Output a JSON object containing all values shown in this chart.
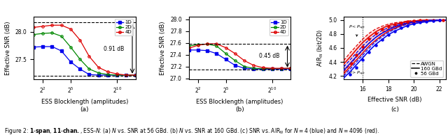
{
  "fig_width": 6.4,
  "fig_height": 1.97,
  "dpi": 100,
  "subplot_a": {
    "xlabel": "ESS Blocklength (amplitudes)",
    "ylabel": "Effective SNR (dB)",
    "dashed_upper": 28.18,
    "dashed_lower": 27.2,
    "annotation": "0.91 dB",
    "x_log": [
      2,
      4,
      8,
      16,
      32,
      64,
      128,
      256,
      512,
      1024,
      2048,
      4096
    ],
    "y_1d": [
      27.72,
      27.73,
      27.73,
      27.65,
      27.45,
      27.32,
      27.22,
      27.21,
      27.21,
      27.21,
      27.21,
      27.21
    ],
    "y_2d": [
      27.95,
      27.97,
      27.98,
      27.92,
      27.72,
      27.5,
      27.32,
      27.25,
      27.22,
      27.21,
      27.21,
      27.21
    ],
    "y_4d": [
      28.08,
      28.1,
      28.12,
      28.12,
      28.05,
      27.85,
      27.55,
      27.35,
      27.27,
      27.23,
      27.21,
      27.21
    ],
    "ylim": [
      27.13,
      28.28
    ],
    "yticks": [
      27.5,
      28.0
    ],
    "xticks_pos": [
      4,
      32,
      1024
    ],
    "xticks_labels": [
      "$2^2$",
      "$2^5$",
      "$2^{10}$"
    ],
    "xlim": [
      2,
      4096
    ]
  },
  "subplot_b": {
    "xlabel": "ESS Blocklength (amplitudes)",
    "ylabel": "Effective SNR (dB)",
    "dashed_upper": 27.59,
    "dashed_lower": 27.15,
    "annotation": "0.45 dB",
    "x_log": [
      2,
      4,
      8,
      16,
      32,
      64,
      128,
      256,
      512,
      1024,
      2048,
      4096
    ],
    "y_1d": [
      27.48,
      27.48,
      27.47,
      27.42,
      27.32,
      27.22,
      27.17,
      27.16,
      27.155,
      27.155,
      27.155,
      27.16
    ],
    "y_2d": [
      27.55,
      27.57,
      27.58,
      27.55,
      27.42,
      27.3,
      27.2,
      27.17,
      27.165,
      27.165,
      27.165,
      27.17
    ],
    "y_4d": [
      27.51,
      27.56,
      27.585,
      27.585,
      27.52,
      27.42,
      27.3,
      27.22,
      27.18,
      27.17,
      27.17,
      27.17
    ],
    "ylim": [
      26.98,
      28.05
    ],
    "yticks": [
      27.0,
      27.2,
      27.4,
      27.6,
      27.8,
      28.0
    ],
    "xticks_pos": [
      4,
      32,
      1024
    ],
    "xticks_labels": [
      "$2^2$",
      "$2^5$",
      "$2^{10}$"
    ],
    "xlim": [
      2,
      4096
    ]
  },
  "subplot_c": {
    "xlabel": "Effective SNR (dB)",
    "ylabel": "AIR$_N$ (bit/2D)",
    "xlim": [
      14.5,
      22.5
    ],
    "ylim": [
      4.15,
      5.05
    ],
    "yticks": [
      4.2,
      4.4,
      4.6,
      4.8,
      5.0
    ],
    "xticks": [
      16,
      18,
      20,
      22
    ],
    "vline_x": 16.0,
    "snr_curve": [
      14.5,
      15.0,
      15.5,
      16.0,
      16.5,
      17.0,
      17.5,
      18.0,
      18.5,
      19.0,
      19.5,
      20.0,
      20.5,
      21.0,
      21.5,
      22.0,
      22.5
    ],
    "awgn_red_upper": [
      4.42,
      4.53,
      4.63,
      4.73,
      4.81,
      4.87,
      4.91,
      4.94,
      4.96,
      4.97,
      4.985,
      4.992,
      4.996,
      4.998,
      4.999,
      5.0,
      5.0
    ],
    "awgn_red_lower": [
      4.26,
      4.36,
      4.47,
      4.57,
      4.67,
      4.75,
      4.82,
      4.87,
      4.91,
      4.94,
      4.96,
      4.975,
      4.985,
      4.992,
      4.996,
      4.998,
      4.999
    ],
    "awgn_blue_upper": [
      4.33,
      4.43,
      4.53,
      4.63,
      4.72,
      4.79,
      4.85,
      4.89,
      4.92,
      4.95,
      4.97,
      4.982,
      4.99,
      4.995,
      4.998,
      4.999,
      5.0
    ],
    "awgn_blue_lower": [
      4.2,
      4.3,
      4.4,
      4.5,
      4.6,
      4.69,
      4.76,
      4.82,
      4.87,
      4.91,
      4.94,
      4.96,
      4.975,
      4.985,
      4.992,
      4.996,
      4.998
    ],
    "solid_red_upper": [
      4.37,
      4.47,
      4.58,
      4.68,
      4.76,
      4.83,
      4.88,
      4.92,
      4.94,
      4.96,
      4.975,
      4.985,
      4.992,
      4.996,
      4.998,
      4.999,
      5.0
    ],
    "solid_red_lower": [
      4.23,
      4.33,
      4.43,
      4.53,
      4.63,
      4.71,
      4.78,
      4.84,
      4.88,
      4.92,
      4.95,
      4.965,
      4.978,
      4.987,
      4.993,
      4.997,
      4.999
    ],
    "solid_blue_upper": [
      4.28,
      4.38,
      4.48,
      4.58,
      4.67,
      4.75,
      4.81,
      4.86,
      4.9,
      4.93,
      4.955,
      4.972,
      4.983,
      4.991,
      4.996,
      4.998,
      4.999
    ],
    "solid_blue_lower": [
      4.17,
      4.26,
      4.36,
      4.46,
      4.56,
      4.65,
      4.72,
      4.79,
      4.84,
      4.88,
      4.92,
      4.945,
      4.962,
      4.975,
      4.985,
      4.992,
      4.996
    ],
    "dots_red_x": [
      15.1,
      15.5,
      16.0,
      16.5,
      17.0,
      17.5,
      18.0,
      18.5,
      19.0,
      19.5,
      20.0,
      20.5,
      21.0,
      21.5,
      22.0,
      22.3
    ],
    "dots_red_y": [
      4.38,
      4.5,
      4.62,
      4.73,
      4.81,
      4.87,
      4.91,
      4.94,
      4.96,
      4.975,
      4.985,
      4.992,
      4.996,
      4.998,
      4.999,
      5.0
    ],
    "dots_blue_x": [
      15.0,
      15.5,
      16.0,
      16.5,
      17.0,
      17.5,
      18.0,
      18.5,
      19.0,
      19.5,
      20.0,
      20.5,
      21.0,
      21.5,
      22.0
    ],
    "dots_blue_y": [
      4.22,
      4.32,
      4.43,
      4.54,
      4.64,
      4.72,
      4.79,
      4.84,
      4.89,
      4.92,
      4.95,
      4.968,
      4.98,
      4.988,
      4.994
    ],
    "label_awgn": "AWGN",
    "label_160": "160 GBd",
    "label_56": "56 GBd"
  },
  "colors": {
    "blue": "#0000EE",
    "green": "#008800",
    "red": "#DD0000",
    "red_fill": "#FFBBBB",
    "blue_fill": "#BBBBFF"
  }
}
